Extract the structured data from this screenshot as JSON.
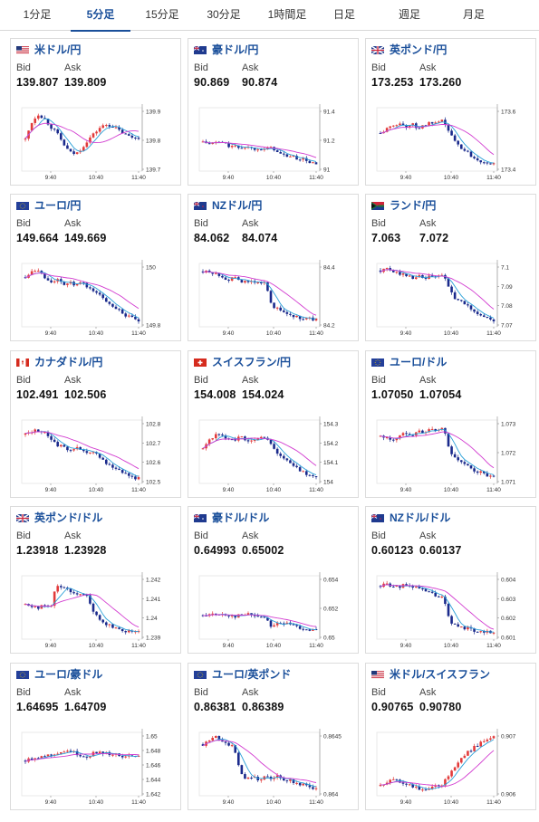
{
  "tabs": [
    {
      "label": "1分足",
      "active": false
    },
    {
      "label": "5分足",
      "active": true
    },
    {
      "label": "15分足",
      "active": false
    },
    {
      "label": "30分足",
      "active": false
    },
    {
      "label": "1時間足",
      "active": false
    },
    {
      "label": "日足",
      "active": false
    },
    {
      "label": "週足",
      "active": false
    },
    {
      "label": "月足",
      "active": false
    }
  ],
  "labels": {
    "bid": "Bid",
    "ask": "Ask"
  },
  "colors": {
    "accent": "#1a4f9a",
    "up": "#e23b3b",
    "down": "#1a2a8c",
    "ma_short": "#2aa0d8",
    "ma_long": "#d23cd0"
  },
  "cards": [
    {
      "pair": "米ドル/円",
      "flag": "us",
      "bid": "139.807",
      "ask": "139.809",
      "chart": {
        "yticks": [
          "139.9",
          "139.8",
          "139.7"
        ],
        "xticks": [
          "9:40",
          "10:40",
          "11:40"
        ],
        "ymin": 139.65,
        "ymax": 139.95,
        "series": [
          139.8,
          139.88,
          139.92,
          139.9,
          139.86,
          139.83,
          139.78,
          139.74,
          139.73,
          139.76,
          139.8,
          139.83,
          139.86,
          139.87,
          139.86,
          139.84,
          139.82,
          139.81,
          139.81
        ]
      }
    },
    {
      "pair": "豪ドル/円",
      "flag": "au",
      "bid": "90.869",
      "ask": "90.874",
      "chart": {
        "yticks": [
          "91.4",
          "91.2",
          "91"
        ],
        "xticks": [
          "9:40",
          "10:40",
          "11:40"
        ],
        "ymin": 90.8,
        "ymax": 91.45,
        "series": [
          91.1,
          91.08,
          91.09,
          91.1,
          91.06,
          91.05,
          91.04,
          91.05,
          91.03,
          91.04,
          91.02,
          91.05,
          90.98,
          90.96,
          90.95,
          90.93,
          90.92,
          90.89,
          90.87
        ]
      }
    },
    {
      "pair": "英ポンド/円",
      "flag": "uk",
      "bid": "173.253",
      "ask": "173.260",
      "chart": {
        "yticks": [
          "173.6",
          "173.4"
        ],
        "xticks": [
          "9:40",
          "10:40",
          "11:40"
        ],
        "ymin": 173.2,
        "ymax": 173.7,
        "series": [
          173.5,
          173.53,
          173.56,
          173.58,
          173.55,
          173.57,
          173.54,
          173.56,
          173.58,
          173.57,
          173.6,
          173.5,
          173.42,
          173.38,
          173.34,
          173.3,
          173.28,
          173.27,
          173.25
        ]
      }
    },
    {
      "pair": "ユーロ/円",
      "flag": "eu",
      "bid": "149.664",
      "ask": "149.669",
      "chart": {
        "yticks": [
          "150",
          "149.8"
        ],
        "xticks": [
          "9:40",
          "10:40",
          "11:40"
        ],
        "ymin": 149.62,
        "ymax": 150.08,
        "series": [
          149.98,
          150.03,
          150.04,
          149.98,
          149.95,
          149.96,
          149.93,
          149.94,
          149.92,
          149.94,
          149.9,
          149.88,
          149.84,
          149.8,
          149.77,
          149.74,
          149.7,
          149.68,
          149.66
        ]
      }
    },
    {
      "pair": "NZドル/円",
      "flag": "nz",
      "bid": "84.062",
      "ask": "84.074",
      "chart": {
        "yticks": [
          "84.4",
          "84.2"
        ],
        "xticks": [
          "9:40",
          "10:40",
          "11:40"
        ],
        "ymin": 84.0,
        "ymax": 84.55,
        "series": [
          84.48,
          84.47,
          84.46,
          84.44,
          84.41,
          84.42,
          84.4,
          84.38,
          84.4,
          84.37,
          84.38,
          84.18,
          84.15,
          84.12,
          84.1,
          84.08,
          84.07,
          84.07,
          84.06
        ]
      }
    },
    {
      "pair": "ランド/円",
      "flag": "za",
      "bid": "7.063",
      "ask": "7.072",
      "chart": {
        "yticks": [
          "7.1",
          "7.09",
          "7.08",
          "7.07"
        ],
        "xticks": [
          "9:40",
          "10:40",
          "11:40"
        ],
        "ymin": 7.06,
        "ymax": 7.105,
        "series": [
          7.1,
          7.101,
          7.099,
          7.098,
          7.097,
          7.095,
          7.096,
          7.094,
          7.096,
          7.095,
          7.098,
          7.085,
          7.08,
          7.077,
          7.074,
          7.071,
          7.068,
          7.066,
          7.064
        ]
      }
    },
    {
      "pair": "カナダドル/円",
      "flag": "ca",
      "bid": "102.491",
      "ask": "102.506",
      "chart": {
        "yticks": [
          "102.8",
          "102.7",
          "102.6",
          "102.5"
        ],
        "xticks": [
          "9:40",
          "10:40",
          "11:40"
        ],
        "ymin": 102.46,
        "ymax": 102.85,
        "series": [
          102.76,
          102.78,
          102.79,
          102.77,
          102.74,
          102.7,
          102.68,
          102.67,
          102.68,
          102.66,
          102.64,
          102.65,
          102.62,
          102.58,
          102.56,
          102.54,
          102.52,
          102.5,
          102.49
        ]
      }
    },
    {
      "pair": "スイスフラン/円",
      "flag": "ch",
      "bid": "154.008",
      "ask": "154.024",
      "chart": {
        "yticks": [
          "154.3",
          "154.2",
          "154.1",
          "154"
        ],
        "xticks": [
          "9:40",
          "10:40",
          "11:40"
        ],
        "ymin": 153.97,
        "ymax": 154.36,
        "series": [
          154.18,
          154.24,
          154.27,
          154.26,
          154.25,
          154.24,
          154.26,
          154.22,
          154.24,
          154.25,
          154.26,
          154.2,
          154.15,
          154.12,
          154.09,
          154.06,
          154.04,
          154.02,
          154.01
        ]
      }
    },
    {
      "pair": "ユーロ/ドル",
      "flag": "eu",
      "bid": "1.07050",
      "ask": "1.07054",
      "chart": {
        "yticks": [
          "1.073",
          "1.072",
          "1.071"
        ],
        "xticks": [
          "9:40",
          "10:40",
          "11:40"
        ],
        "ymin": 1.0702,
        "ymax": 1.0737,
        "series": [
          1.0728,
          1.0727,
          1.0726,
          1.0728,
          1.073,
          1.0729,
          1.0731,
          1.073,
          1.0732,
          1.0731,
          1.0733,
          1.072,
          1.0716,
          1.0713,
          1.0711,
          1.0709,
          1.0708,
          1.0706,
          1.0705
        ]
      }
    },
    {
      "pair": "英ポンド/ドル",
      "flag": "uk",
      "bid": "1.23918",
      "ask": "1.23928",
      "chart": {
        "yticks": [
          "1.242",
          "1.241",
          "1.24",
          "1.239"
        ],
        "xticks": [
          "9:40",
          "10:40",
          "11:40"
        ],
        "ymin": 1.2387,
        "ymax": 1.2425,
        "series": [
          1.2408,
          1.2407,
          1.2406,
          1.2407,
          1.2406,
          1.242,
          1.2418,
          1.2416,
          1.2415,
          1.2414,
          1.2412,
          1.2402,
          1.2398,
          1.2396,
          1.2394,
          1.2393,
          1.2392,
          1.2392,
          1.2392
        ]
      }
    },
    {
      "pair": "豪ドル/ドル",
      "flag": "au",
      "bid": "0.64993",
      "ask": "0.65002",
      "chart": {
        "yticks": [
          "0.654",
          "0.652",
          "0.65"
        ],
        "xticks": [
          "9:40",
          "10:40",
          "11:40"
        ],
        "ymin": 0.6492,
        "ymax": 0.6545,
        "series": [
          0.6512,
          0.6513,
          0.6512,
          0.6513,
          0.6512,
          0.6511,
          0.6512,
          0.6513,
          0.6512,
          0.6511,
          0.651,
          0.6502,
          0.6506,
          0.6505,
          0.6504,
          0.6502,
          0.6501,
          0.65,
          0.6499
        ]
      }
    },
    {
      "pair": "NZドル/ドル",
      "flag": "nz",
      "bid": "0.60123",
      "ask": "0.60137",
      "chart": {
        "yticks": [
          "0.604",
          "0.603",
          "0.602",
          "0.601"
        ],
        "xticks": [
          "9:40",
          "10:40",
          "11:40"
        ],
        "ymin": 0.6008,
        "ymax": 0.6045,
        "series": [
          0.6039,
          0.604,
          0.6039,
          0.6038,
          0.604,
          0.6039,
          0.6038,
          0.6036,
          0.6035,
          0.6033,
          0.6032,
          0.6018,
          0.6016,
          0.6015,
          0.6014,
          0.6013,
          0.6013,
          0.6012,
          0.6012
        ]
      }
    },
    {
      "pair": "ユーロ/豪ドル",
      "flag": "eu",
      "bid": "1.64695",
      "ask": "1.64709",
      "chart": {
        "yticks": [
          "1.65",
          "1.648",
          "1.646",
          "1.644",
          "1.642"
        ],
        "xticks": [
          "9:40",
          "10:40",
          "11:40"
        ],
        "ymin": 1.6415,
        "ymax": 1.6505,
        "series": [
          1.6465,
          1.6468,
          1.647,
          1.6472,
          1.6473,
          1.6476,
          1.6478,
          1.6479,
          1.6475,
          1.6472,
          1.647,
          1.6478,
          1.6476,
          1.6475,
          1.6474,
          1.6472,
          1.6471,
          1.647,
          1.647
        ]
      }
    },
    {
      "pair": "ユーロ/英ポンド",
      "flag": "eu",
      "bid": "0.86381",
      "ask": "0.86389",
      "chart": {
        "yticks": [
          "0.8645",
          "0.864"
        ],
        "xticks": [
          "9:40",
          "10:40",
          "11:40"
        ],
        "ymin": 0.8636,
        "ymax": 0.8652,
        "series": [
          0.8649,
          0.865,
          0.8651,
          0.865,
          0.8649,
          0.8648,
          0.8642,
          0.864,
          0.8641,
          0.864,
          0.8641,
          0.864,
          0.8641,
          0.864,
          0.864,
          0.8639,
          0.8639,
          0.8638,
          0.8638
        ]
      }
    },
    {
      "pair": "米ドル/スイスフラン",
      "flag": "us",
      "bid": "0.90765",
      "ask": "0.90780",
      "chart": {
        "yticks": [
          "0.907",
          "0.906"
        ],
        "xticks": [
          "9:40",
          "10:40",
          "11:40"
        ],
        "ymin": 0.9053,
        "ymax": 0.9079,
        "series": [
          0.9057,
          0.9058,
          0.906,
          0.9059,
          0.9058,
          0.9057,
          0.9056,
          0.9055,
          0.9056,
          0.9057,
          0.9058,
          0.9062,
          0.9066,
          0.9069,
          0.9071,
          0.9073,
          0.9075,
          0.9076,
          0.9077
        ]
      }
    }
  ]
}
